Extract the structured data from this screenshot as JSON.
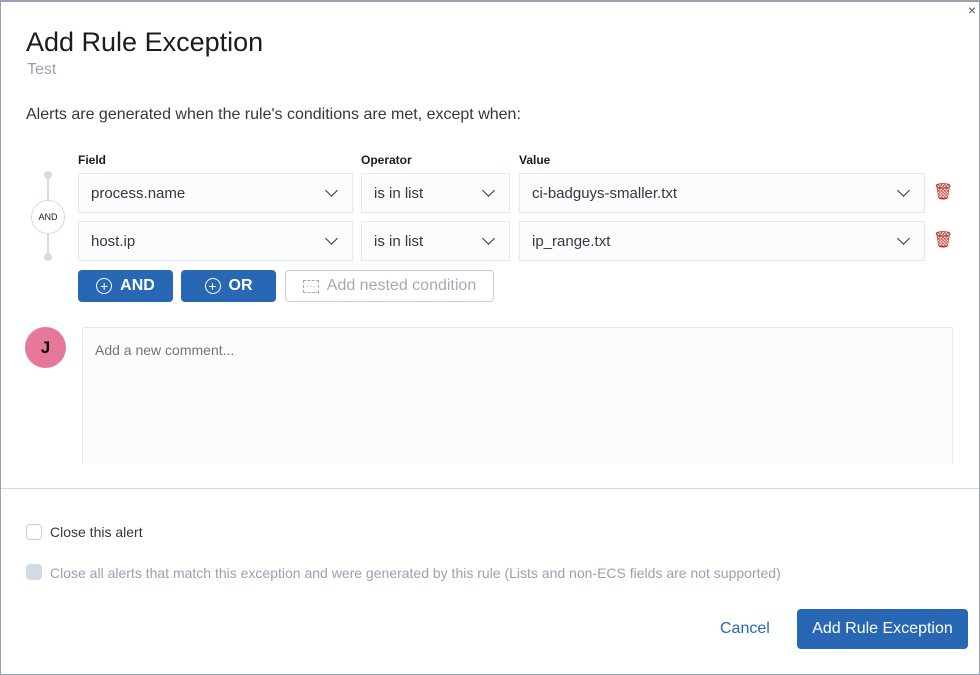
{
  "modal": {
    "title": "Add Rule Exception",
    "subtitle": "Test",
    "description": "Alerts are generated when the rule's conditions are met, except when:"
  },
  "builder": {
    "headers": {
      "field": "Field",
      "operator": "Operator",
      "value": "Value"
    },
    "connector": "AND",
    "rows": [
      {
        "field": "process.name",
        "operator": "is in list",
        "value": "ci-badguys-smaller.txt"
      },
      {
        "field": "host.ip",
        "operator": "is in list",
        "value": "ip_range.txt"
      }
    ],
    "and_label": "AND",
    "or_label": "OR",
    "nested_label": "Add nested condition"
  },
  "comment": {
    "avatar": "J",
    "avatar_color": "#e7789a",
    "placeholder": "Add a new comment..."
  },
  "options": {
    "close_alert": "Close this alert",
    "close_all": "Close all alerts that match this exception and were generated by this rule (Lists and non-ECS fields are not supported)"
  },
  "footer": {
    "cancel": "Cancel",
    "submit": "Add Rule Exception"
  },
  "colors": {
    "primary": "#2767b3",
    "danger": "#bd271e"
  }
}
